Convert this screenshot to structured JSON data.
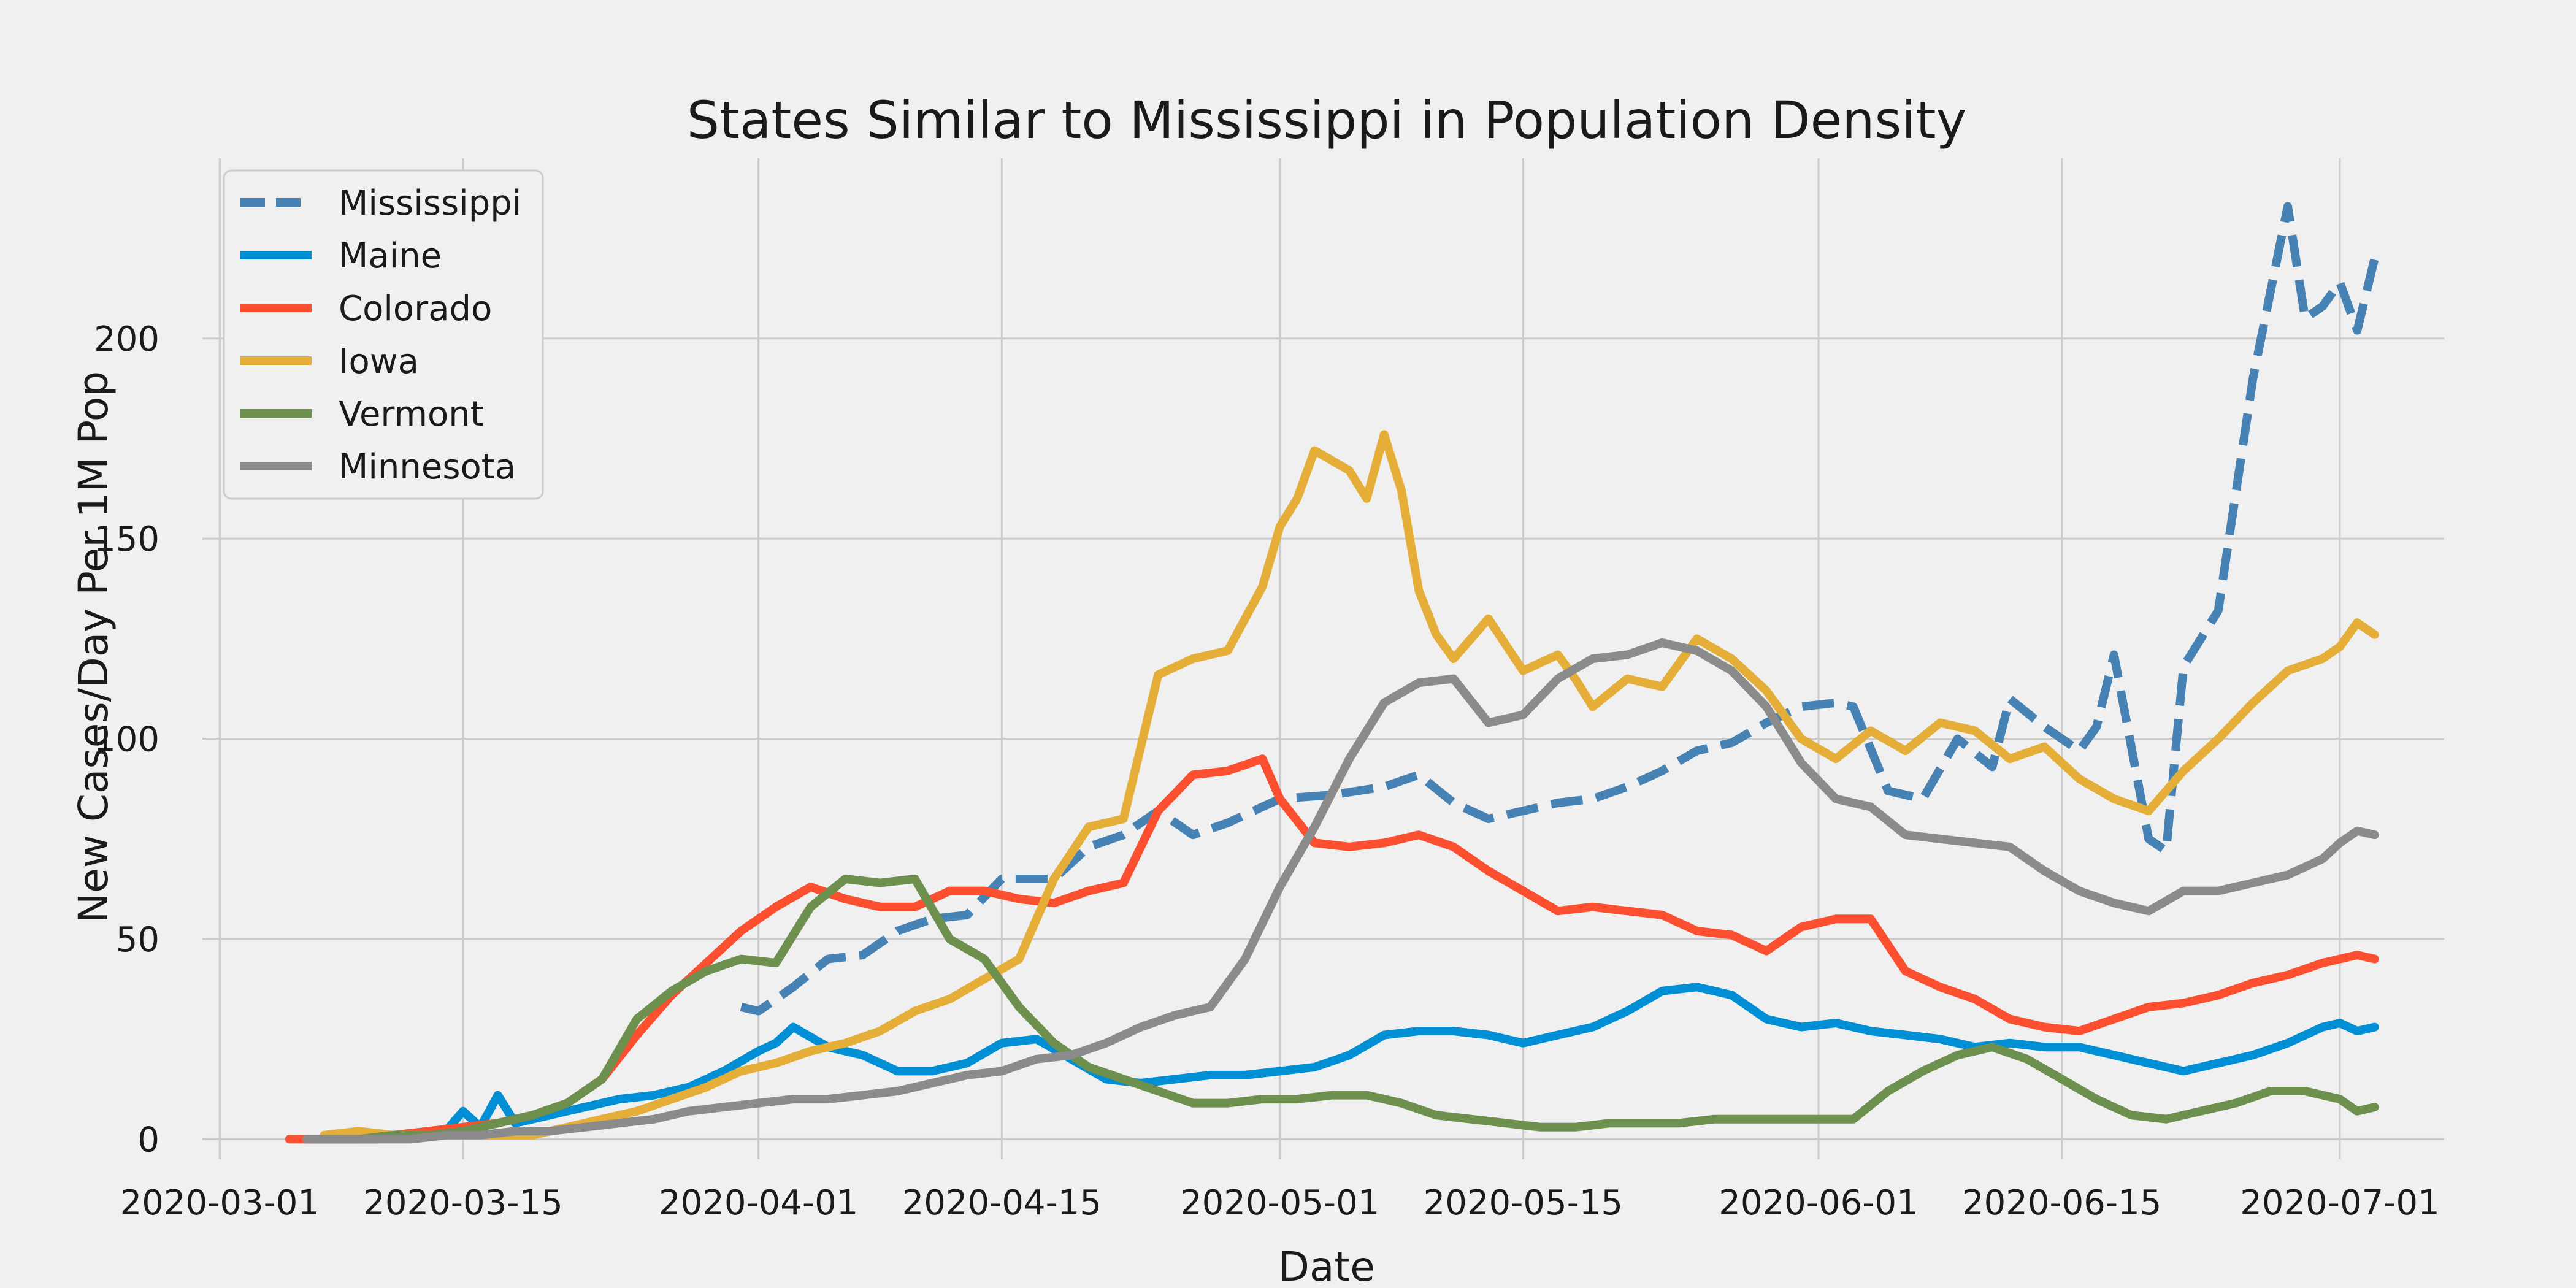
{
  "chart_data": {
    "type": "line",
    "title": "States Similar to Mississippi in Population Density",
    "xlabel": "Date",
    "ylabel": "New Cases/Day Per 1M Pop",
    "xlim": [
      "2020-02-29",
      "2020-07-07"
    ],
    "ylim": [
      -5,
      245
    ],
    "grid": true,
    "legend_position": "top-left",
    "x_ticks": [
      "2020-03-01",
      "2020-03-15",
      "2020-04-01",
      "2020-04-15",
      "2020-05-01",
      "2020-05-15",
      "2020-06-01",
      "2020-06-15",
      "2020-07-01"
    ],
    "y_ticks": [
      0,
      50,
      100,
      150,
      200
    ],
    "series": [
      {
        "name": "Mississippi",
        "color": "#4682b4",
        "dashed": true,
        "x": [
          "2020-03-31",
          "2020-04-01",
          "2020-04-03",
          "2020-04-05",
          "2020-04-07",
          "2020-04-09",
          "2020-04-11",
          "2020-04-13",
          "2020-04-15",
          "2020-04-18",
          "2020-04-20",
          "2020-04-22",
          "2020-04-24",
          "2020-04-26",
          "2020-04-28",
          "2020-05-01",
          "2020-05-04",
          "2020-05-07",
          "2020-05-09",
          "2020-05-11",
          "2020-05-13",
          "2020-05-15",
          "2020-05-17",
          "2020-05-19",
          "2020-05-21",
          "2020-05-23",
          "2020-05-25",
          "2020-05-27",
          "2020-05-29",
          "2020-05-31",
          "2020-06-02",
          "2020-06-03",
          "2020-06-05",
          "2020-06-07",
          "2020-06-09",
          "2020-06-11",
          "2020-06-12",
          "2020-06-14",
          "2020-06-16",
          "2020-06-17",
          "2020-06-18",
          "2020-06-20",
          "2020-06-21",
          "2020-06-22",
          "2020-06-24",
          "2020-06-26",
          "2020-06-28",
          "2020-06-29",
          "2020-06-30",
          "2020-07-01",
          "2020-07-02",
          "2020-07-03"
        ],
        "values": [
          33,
          32,
          38,
          45,
          46,
          52,
          55,
          56,
          65,
          65,
          73,
          76,
          82,
          76,
          79,
          85,
          86,
          88,
          91,
          84,
          80,
          82,
          84,
          85,
          88,
          92,
          97,
          99,
          104,
          108,
          109,
          108,
          87,
          85,
          100,
          93,
          110,
          103,
          97,
          103,
          121,
          75,
          72,
          118,
          132,
          190,
          233,
          205,
          208,
          214,
          202,
          220
        ]
      },
      {
        "name": "Maine",
        "color": "#008fd5",
        "dashed": false,
        "x": [
          "2020-03-06",
          "2020-03-08",
          "2020-03-10",
          "2020-03-12",
          "2020-03-14",
          "2020-03-15",
          "2020-03-16",
          "2020-03-17",
          "2020-03-18",
          "2020-03-20",
          "2020-03-22",
          "2020-03-24",
          "2020-03-26",
          "2020-03-28",
          "2020-03-30",
          "2020-04-01",
          "2020-04-02",
          "2020-04-03",
          "2020-04-05",
          "2020-04-07",
          "2020-04-09",
          "2020-04-11",
          "2020-04-13",
          "2020-04-15",
          "2020-04-17",
          "2020-04-19",
          "2020-04-21",
          "2020-04-23",
          "2020-04-25",
          "2020-04-27",
          "2020-04-29",
          "2020-05-01",
          "2020-05-03",
          "2020-05-05",
          "2020-05-07",
          "2020-05-09",
          "2020-05-11",
          "2020-05-13",
          "2020-05-15",
          "2020-05-17",
          "2020-05-19",
          "2020-05-21",
          "2020-05-23",
          "2020-05-25",
          "2020-05-27",
          "2020-05-29",
          "2020-05-31",
          "2020-06-02",
          "2020-06-04",
          "2020-06-06",
          "2020-06-08",
          "2020-06-10",
          "2020-06-12",
          "2020-06-14",
          "2020-06-16",
          "2020-06-18",
          "2020-06-20",
          "2020-06-22",
          "2020-06-24",
          "2020-06-26",
          "2020-06-28",
          "2020-06-30",
          "2020-07-01",
          "2020-07-02",
          "2020-07-03"
        ],
        "values": [
          0,
          0,
          0,
          1,
          2,
          7,
          3,
          11,
          4,
          6,
          8,
          10,
          11,
          13,
          17,
          22,
          24,
          28,
          23,
          21,
          17,
          17,
          19,
          24,
          25,
          20,
          15,
          14,
          15,
          16,
          16,
          17,
          18,
          21,
          26,
          27,
          27,
          26,
          24,
          26,
          28,
          32,
          37,
          38,
          36,
          30,
          28,
          29,
          27,
          26,
          25,
          23,
          24,
          23,
          23,
          21,
          19,
          17,
          19,
          21,
          24,
          28,
          29,
          27,
          28
        ]
      },
      {
        "name": "Colorado",
        "color": "#fc4f30",
        "dashed": false,
        "x": [
          "2020-03-05",
          "2020-03-07",
          "2020-03-09",
          "2020-03-11",
          "2020-03-13",
          "2020-03-15",
          "2020-03-17",
          "2020-03-19",
          "2020-03-21",
          "2020-03-23",
          "2020-03-25",
          "2020-03-27",
          "2020-03-29",
          "2020-03-31",
          "2020-04-02",
          "2020-04-04",
          "2020-04-06",
          "2020-04-08",
          "2020-04-10",
          "2020-04-12",
          "2020-04-14",
          "2020-04-16",
          "2020-04-18",
          "2020-04-20",
          "2020-04-22",
          "2020-04-24",
          "2020-04-26",
          "2020-04-28",
          "2020-04-30",
          "2020-05-01",
          "2020-05-03",
          "2020-05-05",
          "2020-05-07",
          "2020-05-09",
          "2020-05-11",
          "2020-05-13",
          "2020-05-15",
          "2020-05-17",
          "2020-05-19",
          "2020-05-21",
          "2020-05-23",
          "2020-05-25",
          "2020-05-27",
          "2020-05-29",
          "2020-05-31",
          "2020-06-02",
          "2020-06-04",
          "2020-06-06",
          "2020-06-08",
          "2020-06-10",
          "2020-06-12",
          "2020-06-14",
          "2020-06-16",
          "2020-06-18",
          "2020-06-20",
          "2020-06-22",
          "2020-06-24",
          "2020-06-26",
          "2020-06-28",
          "2020-06-30",
          "2020-07-01",
          "2020-07-02",
          "2020-07-03"
        ],
        "values": [
          0,
          0,
          1,
          1,
          2,
          3,
          4,
          6,
          9,
          15,
          26,
          36,
          44,
          52,
          58,
          63,
          60,
          58,
          58,
          62,
          62,
          60,
          59,
          62,
          64,
          82,
          91,
          92,
          95,
          85,
          74,
          73,
          74,
          76,
          73,
          67,
          62,
          57,
          58,
          57,
          56,
          52,
          51,
          47,
          53,
          55,
          55,
          42,
          38,
          35,
          30,
          28,
          27,
          30,
          33,
          34,
          36,
          39,
          41,
          44,
          45,
          46,
          45
        ]
      },
      {
        "name": "Iowa",
        "color": "#e5ae38",
        "dashed": false,
        "x": [
          "2020-03-07",
          "2020-03-09",
          "2020-03-11",
          "2020-03-13",
          "2020-03-15",
          "2020-03-17",
          "2020-03-19",
          "2020-03-21",
          "2020-03-23",
          "2020-03-25",
          "2020-03-27",
          "2020-03-29",
          "2020-03-31",
          "2020-04-02",
          "2020-04-04",
          "2020-04-06",
          "2020-04-08",
          "2020-04-10",
          "2020-04-12",
          "2020-04-14",
          "2020-04-16",
          "2020-04-18",
          "2020-04-20",
          "2020-04-22",
          "2020-04-24",
          "2020-04-26",
          "2020-04-28",
          "2020-04-30",
          "2020-05-01",
          "2020-05-02",
          "2020-05-03",
          "2020-05-05",
          "2020-05-06",
          "2020-05-07",
          "2020-05-08",
          "2020-05-09",
          "2020-05-10",
          "2020-05-11",
          "2020-05-13",
          "2020-05-15",
          "2020-05-17",
          "2020-05-18",
          "2020-05-19",
          "2020-05-21",
          "2020-05-23",
          "2020-05-25",
          "2020-05-27",
          "2020-05-29",
          "2020-05-31",
          "2020-06-02",
          "2020-06-04",
          "2020-06-06",
          "2020-06-08",
          "2020-06-10",
          "2020-06-12",
          "2020-06-14",
          "2020-06-16",
          "2020-06-18",
          "2020-06-20",
          "2020-06-22",
          "2020-06-24",
          "2020-06-26",
          "2020-06-28",
          "2020-06-30",
          "2020-07-01",
          "2020-07-02",
          "2020-07-03"
        ],
        "values": [
          1,
          2,
          1,
          1,
          1,
          1,
          1,
          3,
          5,
          7,
          10,
          13,
          17,
          19,
          22,
          24,
          27,
          32,
          35,
          40,
          45,
          65,
          78,
          80,
          116,
          120,
          122,
          138,
          153,
          160,
          172,
          167,
          160,
          176,
          162,
          137,
          126,
          120,
          130,
          117,
          121,
          115,
          108,
          115,
          113,
          125,
          120,
          112,
          100,
          95,
          102,
          97,
          104,
          102,
          95,
          98,
          90,
          85,
          82,
          92,
          100,
          109,
          117,
          120,
          123,
          129,
          126
        ]
      },
      {
        "name": "Vermont",
        "color": "#6d904f",
        "dashed": false,
        "x": [
          "2020-03-07",
          "2020-03-09",
          "2020-03-11",
          "2020-03-13",
          "2020-03-15",
          "2020-03-17",
          "2020-03-19",
          "2020-03-21",
          "2020-03-23",
          "2020-03-25",
          "2020-03-27",
          "2020-03-29",
          "2020-03-31",
          "2020-04-02",
          "2020-04-04",
          "2020-04-06",
          "2020-04-08",
          "2020-04-10",
          "2020-04-12",
          "2020-04-14",
          "2020-04-16",
          "2020-04-18",
          "2020-04-20",
          "2020-04-22",
          "2020-04-24",
          "2020-04-26",
          "2020-04-28",
          "2020-04-30",
          "2020-05-02",
          "2020-05-04",
          "2020-05-06",
          "2020-05-08",
          "2020-05-10",
          "2020-05-12",
          "2020-05-14",
          "2020-05-16",
          "2020-05-18",
          "2020-05-20",
          "2020-05-22",
          "2020-05-24",
          "2020-05-26",
          "2020-05-28",
          "2020-05-30",
          "2020-06-01",
          "2020-06-03",
          "2020-06-05",
          "2020-06-07",
          "2020-06-09",
          "2020-06-11",
          "2020-06-13",
          "2020-06-15",
          "2020-06-17",
          "2020-06-19",
          "2020-06-21",
          "2020-06-23",
          "2020-06-25",
          "2020-06-27",
          "2020-06-29",
          "2020-07-01",
          "2020-07-02",
          "2020-07-03"
        ],
        "values": [
          0,
          0,
          1,
          1,
          2,
          4,
          6,
          9,
          15,
          30,
          37,
          42,
          45,
          44,
          58,
          65,
          64,
          65,
          50,
          45,
          33,
          24,
          18,
          15,
          12,
          9,
          9,
          10,
          10,
          11,
          11,
          9,
          6,
          5,
          4,
          3,
          3,
          4,
          4,
          4,
          5,
          5,
          5,
          5,
          5,
          12,
          17,
          21,
          23,
          20,
          15,
          10,
          6,
          5,
          7,
          9,
          12,
          12,
          10,
          7,
          8
        ]
      },
      {
        "name": "Minnesota",
        "color": "#8b8b8b",
        "dashed": false,
        "x": [
          "2020-03-06",
          "2020-03-08",
          "2020-03-10",
          "2020-03-12",
          "2020-03-14",
          "2020-03-16",
          "2020-03-18",
          "2020-03-20",
          "2020-03-22",
          "2020-03-24",
          "2020-03-26",
          "2020-03-28",
          "2020-03-30",
          "2020-04-01",
          "2020-04-03",
          "2020-04-05",
          "2020-04-07",
          "2020-04-09",
          "2020-04-11",
          "2020-04-13",
          "2020-04-15",
          "2020-04-17",
          "2020-04-19",
          "2020-04-21",
          "2020-04-23",
          "2020-04-25",
          "2020-04-27",
          "2020-04-29",
          "2020-05-01",
          "2020-05-03",
          "2020-05-05",
          "2020-05-07",
          "2020-05-09",
          "2020-05-11",
          "2020-05-13",
          "2020-05-15",
          "2020-05-17",
          "2020-05-19",
          "2020-05-21",
          "2020-05-23",
          "2020-05-25",
          "2020-05-27",
          "2020-05-29",
          "2020-05-31",
          "2020-06-02",
          "2020-06-04",
          "2020-06-06",
          "2020-06-08",
          "2020-06-10",
          "2020-06-12",
          "2020-06-14",
          "2020-06-16",
          "2020-06-18",
          "2020-06-20",
          "2020-06-22",
          "2020-06-24",
          "2020-06-26",
          "2020-06-28",
          "2020-06-30",
          "2020-07-01",
          "2020-07-02",
          "2020-07-03"
        ],
        "values": [
          0,
          0,
          0,
          0,
          1,
          1,
          2,
          2,
          3,
          4,
          5,
          7,
          8,
          9,
          10,
          10,
          11,
          12,
          14,
          16,
          17,
          20,
          21,
          24,
          28,
          31,
          33,
          45,
          63,
          78,
          95,
          109,
          114,
          115,
          104,
          106,
          115,
          120,
          121,
          124,
          122,
          117,
          108,
          94,
          85,
          83,
          76,
          75,
          74,
          73,
          67,
          62,
          59,
          57,
          62,
          62,
          64,
          66,
          70,
          74,
          77,
          76
        ]
      }
    ]
  }
}
